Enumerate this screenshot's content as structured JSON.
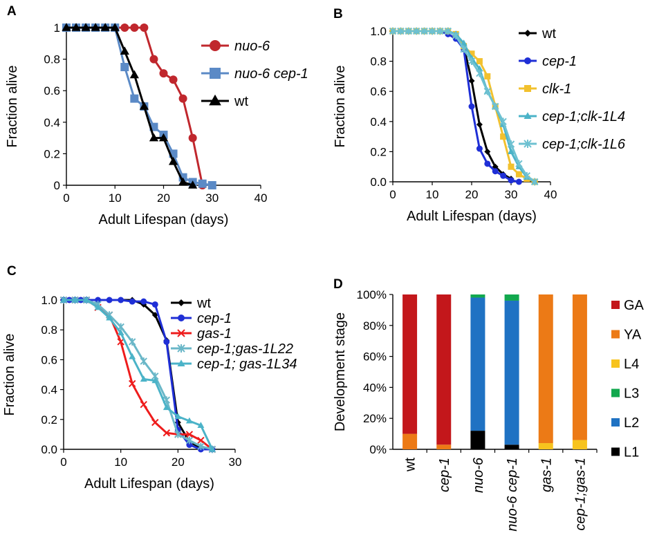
{
  "figure": {
    "panels": [
      "A",
      "B",
      "C",
      "D"
    ]
  },
  "chart_data": [
    {
      "panel": "A",
      "type": "line",
      "xlabel": "Adult Lifespan (days)",
      "ylabel": "Fraction alive",
      "xlim": [
        0,
        40
      ],
      "ylim": [
        0,
        1
      ],
      "xticks": [
        "0",
        "10",
        "20",
        "30",
        "40"
      ],
      "yticks": [
        "0",
        "0.2",
        "0.4",
        "0.6",
        "0.8",
        "1"
      ],
      "grid": false,
      "legend": "right",
      "series": [
        {
          "name": "nuo-6",
          "italic": true,
          "color": "#c0272d",
          "marker": "circle",
          "x": [
            0,
            2,
            4,
            6,
            8,
            10,
            12,
            14,
            16,
            18,
            20,
            22,
            24,
            26,
            28
          ],
          "y": [
            1,
            1,
            1,
            1,
            1,
            1,
            1,
            1,
            1,
            0.8,
            0.71,
            0.67,
            0.55,
            0.3,
            0
          ]
        },
        {
          "name": "nuo-6 cep-1",
          "italic": true,
          "color": "#5b8ac6",
          "marker": "square",
          "x": [
            0,
            2,
            4,
            6,
            8,
            10,
            12,
            14,
            16,
            18,
            20,
            22,
            24,
            26,
            28,
            30
          ],
          "y": [
            1,
            1,
            1,
            1,
            1,
            1,
            0.75,
            0.55,
            0.5,
            0.37,
            0.32,
            0.2,
            0.05,
            0.02,
            0.01,
            0
          ]
        },
        {
          "name": "wt",
          "italic": false,
          "color": "#000000",
          "marker": "triangle",
          "x": [
            0,
            2,
            4,
            6,
            8,
            10,
            12,
            14,
            16,
            18,
            20,
            22,
            24,
            26
          ],
          "y": [
            1,
            1,
            1,
            1,
            1,
            1,
            0.85,
            0.7,
            0.5,
            0.3,
            0.3,
            0.15,
            0.02,
            0
          ]
        }
      ]
    },
    {
      "panel": "B",
      "type": "line",
      "xlabel": "Adult Lifespan (days)",
      "ylabel": "Fraction alive",
      "xlim": [
        0,
        40
      ],
      "ylim": [
        0,
        1
      ],
      "xticks": [
        "0",
        "10",
        "20",
        "30",
        "40"
      ],
      "yticks": [
        "0.0",
        "0.2",
        "0.4",
        "0.6",
        "0.8",
        "1.0"
      ],
      "grid": false,
      "legend": "right",
      "series": [
        {
          "name": "wt",
          "italic": false,
          "color": "#000000",
          "marker": "diamond",
          "x": [
            0,
            2,
            4,
            6,
            8,
            10,
            12,
            14,
            16,
            18,
            20,
            22,
            24,
            26,
            28,
            30
          ],
          "y": [
            1,
            1,
            1,
            1,
            1,
            1,
            1,
            0.98,
            0.95,
            0.9,
            0.67,
            0.38,
            0.2,
            0.1,
            0.05,
            0.02
          ]
        },
        {
          "name": "cep-1",
          "italic": true,
          "color": "#1f2fd6",
          "marker": "circle",
          "x": [
            0,
            2,
            4,
            6,
            8,
            10,
            12,
            14,
            16,
            18,
            20,
            22,
            24,
            26,
            28,
            30,
            32
          ],
          "y": [
            1,
            1,
            1,
            1,
            1,
            1,
            1,
            0.98,
            0.95,
            0.88,
            0.5,
            0.22,
            0.12,
            0.07,
            0.04,
            0.01,
            0
          ]
        },
        {
          "name": "clk-1",
          "italic": true,
          "color": "#f2c12e",
          "marker": "square",
          "x": [
            0,
            2,
            4,
            6,
            8,
            10,
            12,
            14,
            16,
            18,
            20,
            22,
            24,
            26,
            28,
            30,
            32,
            34,
            36
          ],
          "y": [
            1,
            1,
            1,
            1,
            1,
            1,
            1,
            1,
            0.98,
            0.9,
            0.85,
            0.8,
            0.7,
            0.5,
            0.3,
            0.1,
            0.05,
            0.02,
            0
          ]
        },
        {
          "name": "cep-1;clk-1L4",
          "italic": true,
          "color": "#4bb3c8",
          "marker": "triangle",
          "x": [
            0,
            2,
            4,
            6,
            8,
            10,
            12,
            14,
            16,
            18,
            20,
            22,
            24,
            26,
            28,
            30,
            32,
            34,
            36
          ],
          "y": [
            1,
            1,
            1,
            1,
            1,
            1,
            1,
            1,
            0.98,
            0.92,
            0.82,
            0.75,
            0.6,
            0.5,
            0.38,
            0.2,
            0.1,
            0.03,
            0
          ]
        },
        {
          "name": "cep-1;clk-1L6",
          "italic": true,
          "color": "#6ec1d1",
          "marker": "cross",
          "x": [
            0,
            2,
            4,
            6,
            8,
            10,
            12,
            14,
            16,
            18,
            20,
            22,
            24,
            26,
            28,
            30,
            32,
            34,
            36
          ],
          "y": [
            1,
            1,
            1,
            1,
            1,
            1,
            1,
            1,
            0.97,
            0.88,
            0.8,
            0.72,
            0.6,
            0.5,
            0.4,
            0.25,
            0.12,
            0.04,
            0
          ]
        }
      ]
    },
    {
      "panel": "C",
      "type": "line",
      "xlabel": "Adult Lifespan (days)",
      "ylabel": "Fraction alive",
      "xlim": [
        0,
        30
      ],
      "ylim": [
        0,
        1
      ],
      "xticks": [
        "0",
        "10",
        "20",
        "30"
      ],
      "yticks": [
        "0.0",
        "0.2",
        "0.4",
        "0.6",
        "0.8",
        "1.0"
      ],
      "grid": false,
      "legend": "right",
      "series": [
        {
          "name": "wt",
          "italic": false,
          "color": "#000000",
          "marker": "diamond",
          "x": [
            0,
            1,
            2,
            3,
            4,
            6,
            8,
            10,
            12,
            14,
            16,
            18,
            20,
            22,
            24,
            26
          ],
          "y": [
            1,
            1,
            1,
            1,
            1,
            1,
            1,
            1,
            1,
            0.97,
            0.9,
            0.73,
            0.18,
            0.05,
            0.01,
            0
          ]
        },
        {
          "name": "cep-1",
          "italic": true,
          "color": "#1f2fd6",
          "marker": "circle",
          "x": [
            0,
            1,
            2,
            3,
            4,
            6,
            8,
            10,
            12,
            14,
            16,
            18,
            20,
            22,
            24,
            26
          ],
          "y": [
            1,
            1,
            1,
            1,
            1,
            1,
            1,
            1,
            0.99,
            0.99,
            0.97,
            0.72,
            0.13,
            0.03,
            0,
            0
          ]
        },
        {
          "name": "gas-1",
          "italic": true,
          "color": "#ee1c1c",
          "marker": "x",
          "x": [
            0,
            2,
            4,
            6,
            8,
            10,
            12,
            14,
            16,
            18,
            20,
            22,
            24,
            26
          ],
          "y": [
            1,
            1,
            1,
            0.95,
            0.9,
            0.72,
            0.44,
            0.3,
            0.18,
            0.11,
            0.1,
            0.1,
            0.06,
            0
          ]
        },
        {
          "name": "cep-1;gas-1L22",
          "italic": true,
          "color": "#6ab7c8",
          "marker": "star",
          "x": [
            0,
            2,
            4,
            6,
            8,
            10,
            12,
            14,
            16,
            18,
            20,
            22,
            24,
            26
          ],
          "y": [
            1,
            1,
            1,
            0.97,
            0.9,
            0.82,
            0.72,
            0.59,
            0.49,
            0.33,
            0.1,
            0.06,
            0.02,
            0
          ]
        },
        {
          "name": "cep-1; gas-1L34",
          "italic": true,
          "color": "#4bb3c8",
          "marker": "triangle",
          "x": [
            0,
            2,
            4,
            6,
            8,
            10,
            12,
            14,
            16,
            18,
            20,
            22,
            24,
            26
          ],
          "y": [
            1,
            1,
            1,
            0.95,
            0.88,
            0.78,
            0.62,
            0.47,
            0.46,
            0.28,
            0.22,
            0.19,
            0.16,
            0
          ]
        }
      ]
    },
    {
      "panel": "D",
      "type": "bar",
      "stacked": true,
      "ylabel": "Development stage",
      "ylim": [
        0,
        100
      ],
      "yticks": [
        "0%",
        "20%",
        "40%",
        "60%",
        "80%",
        "100%"
      ],
      "categories": [
        "wt",
        "cep-1",
        "nuo-6",
        "nuo-6 cep-1",
        "gas-1",
        "cep-1;gas-1"
      ],
      "category_italic": [
        false,
        true,
        true,
        true,
        true,
        true
      ],
      "legend": "right",
      "series": [
        {
          "name": "L1",
          "color": "#000000",
          "values": [
            0,
            0,
            12,
            3,
            0,
            0
          ]
        },
        {
          "name": "L2",
          "color": "#1f72c3",
          "values": [
            0,
            0,
            86,
            93,
            0,
            0
          ]
        },
        {
          "name": "L3",
          "color": "#12a84e",
          "values": [
            0,
            0,
            2,
            4,
            0,
            0
          ]
        },
        {
          "name": "L4",
          "color": "#f7c31e",
          "values": [
            0,
            0,
            0,
            0,
            4,
            6
          ]
        },
        {
          "name": "YA",
          "color": "#ec7a16",
          "values": [
            10,
            3,
            0,
            0,
            96,
            94
          ]
        },
        {
          "name": "GA",
          "color": "#c3171b",
          "values": [
            90,
            97,
            0,
            0,
            0,
            0
          ]
        }
      ],
      "legend_order": [
        "GA",
        "YA",
        "L4",
        "L3",
        "L2",
        "L1"
      ]
    }
  ]
}
